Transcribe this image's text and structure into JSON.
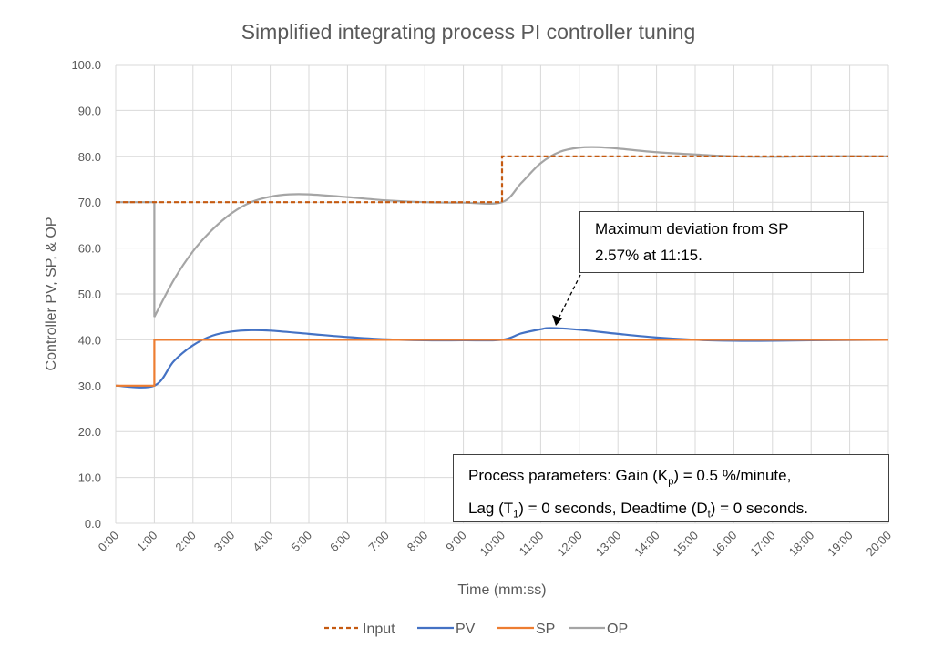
{
  "chart_data": {
    "type": "line",
    "title": "Simplified integrating process PI controller tuning",
    "xlabel": "Time (mm:ss)",
    "ylabel": "Controller PV, SP, & OP",
    "xlim": [
      "0:00",
      "20:00"
    ],
    "ylim": [
      0,
      100
    ],
    "grid": true,
    "legend": "bottom",
    "x_ticks": [
      "0:00",
      "1:00",
      "2:00",
      "3:00",
      "4:00",
      "5:00",
      "6:00",
      "7:00",
      "8:00",
      "9:00",
      "10:00",
      "11:00",
      "12:00",
      "13:00",
      "14:00",
      "15:00",
      "16:00",
      "17:00",
      "18:00",
      "19:00",
      "20:00"
    ],
    "y_ticks": [
      "0.0",
      "10.0",
      "20.0",
      "30.0",
      "40.0",
      "50.0",
      "60.0",
      "70.0",
      "80.0",
      "90.0",
      "100.0"
    ],
    "series": [
      {
        "name": "Input",
        "color": "#C55A11",
        "dash": true,
        "points": [
          [
            "0:00",
            70
          ],
          [
            "10:00",
            70
          ],
          [
            "10:00",
            80
          ],
          [
            "20:00",
            80
          ]
        ]
      },
      {
        "name": "PV",
        "color": "#4472C4",
        "points": [
          [
            "0:00",
            30
          ],
          [
            "1:00",
            30
          ],
          [
            "1:30",
            35.3
          ],
          [
            "2:00",
            38.8
          ],
          [
            "2:30",
            40.9
          ],
          [
            "3:00",
            41.8
          ],
          [
            "3:30",
            42.1
          ],
          [
            "4:00",
            42.0
          ],
          [
            "5:00",
            41.3
          ],
          [
            "6:00",
            40.6
          ],
          [
            "7:00",
            40.1
          ],
          [
            "8:00",
            39.9
          ],
          [
            "9:00",
            39.9
          ],
          [
            "10:00",
            40
          ],
          [
            "10:30",
            41.4
          ],
          [
            "11:00",
            42.3
          ],
          [
            "11:15",
            42.57
          ],
          [
            "12:00",
            42.2
          ],
          [
            "13:00",
            41.3
          ],
          [
            "14:00",
            40.5
          ],
          [
            "15:00",
            40.0
          ],
          [
            "16:00",
            39.8
          ],
          [
            "17:00",
            39.8
          ],
          [
            "18:00",
            39.9
          ],
          [
            "20:00",
            40
          ]
        ]
      },
      {
        "name": "SP",
        "color": "#ED7D31",
        "points": [
          [
            "0:00",
            30
          ],
          [
            "1:00",
            30
          ],
          [
            "1:00",
            40
          ],
          [
            "10:00",
            40
          ],
          [
            "20:00",
            40
          ]
        ]
      },
      {
        "name": "OP",
        "color": "#A5A5A5",
        "points": [
          [
            "0:00",
            70
          ],
          [
            "1:00",
            70
          ],
          [
            "1:00",
            45
          ],
          [
            "1:30",
            53
          ],
          [
            "2:00",
            59.3
          ],
          [
            "2:30",
            64
          ],
          [
            "3:00",
            67.6
          ],
          [
            "3:30",
            70
          ],
          [
            "4:00",
            71.2
          ],
          [
            "4:30",
            71.7
          ],
          [
            "5:00",
            71.7
          ],
          [
            "6:00",
            71.1
          ],
          [
            "7:00",
            70.4
          ],
          [
            "8:00",
            70.0
          ],
          [
            "9:00",
            69.9
          ],
          [
            "10:00",
            70
          ],
          [
            "10:30",
            74.2
          ],
          [
            "11:00",
            78.5
          ],
          [
            "11:30",
            81
          ],
          [
            "12:00",
            81.9
          ],
          [
            "12:30",
            82
          ],
          [
            "13:00",
            81.7
          ],
          [
            "14:00",
            80.9
          ],
          [
            "15:00",
            80.4
          ],
          [
            "16:00",
            80.0
          ],
          [
            "17:00",
            79.9
          ],
          [
            "18:00",
            80
          ],
          [
            "20:00",
            80
          ]
        ]
      }
    ],
    "annotations": {
      "max_deviation": [
        "Maximum deviation from SP",
        "2.57% at 11:15."
      ],
      "process_params_1": "Process parameters:  Gain (K",
      "process_params_1_sub": "p",
      "process_params_1_end": ") = 0.5 %/minute,",
      "process_params_2a": "Lag (T",
      "process_params_2a_sub": "1",
      "process_params_2b": ") = 0 seconds, Deadtime (D",
      "process_params_2b_sub": "t",
      "process_params_2c": ") = 0 seconds."
    }
  }
}
